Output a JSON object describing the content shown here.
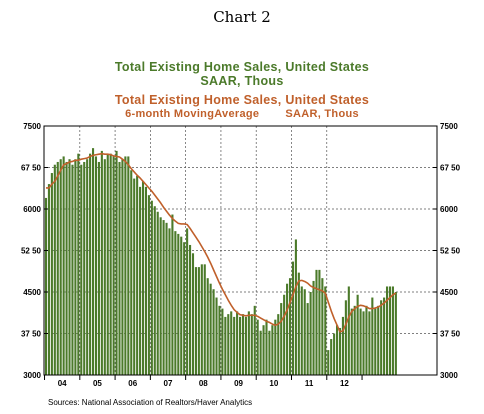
{
  "chart_data": {
    "type": "bar",
    "title": "Chart 2",
    "series": [
      {
        "name": "Total Existing Home Sales, United States",
        "name_line2": "SAAR, Thous",
        "color": "#4b7a2a",
        "kind": "bar",
        "values": [
          6200,
          6450,
          6650,
          6800,
          6850,
          6900,
          6950,
          6850,
          6900,
          6800,
          6900,
          7000,
          6800,
          6850,
          6900,
          7000,
          7100,
          6950,
          6850,
          7050,
          6900,
          7000,
          7000,
          6950,
          7050,
          6850,
          6900,
          6950,
          6950,
          6700,
          6550,
          6600,
          6400,
          6500,
          6400,
          6250,
          6150,
          6050,
          5950,
          5850,
          5800,
          5750,
          5650,
          5900,
          5600,
          5550,
          5500,
          5400,
          5650,
          5350,
          5200,
          4950,
          4950,
          5000,
          5000,
          4750,
          4650,
          4550,
          4400,
          4250,
          4200,
          4050,
          4100,
          4150,
          4050,
          4150,
          4050,
          4100,
          4050,
          4150,
          4100,
          4250,
          4000,
          3800,
          3900,
          4000,
          3800,
          3900,
          4000,
          4100,
          4300,
          4450,
          4650,
          4750,
          5050,
          5450,
          4850,
          4600,
          4550,
          4300,
          4500,
          4700,
          4900,
          4900,
          4750,
          4600,
          3450,
          3650,
          3750,
          3900,
          3850,
          4050,
          4350,
          4600,
          4200,
          4250,
          4450,
          4200,
          4150,
          4250,
          4150,
          4400,
          4200,
          4250,
          4350,
          4400,
          4600,
          4600,
          4600,
          4500
        ]
      },
      {
        "name": "Total Existing Home Sales, United States",
        "name_line2a": "6-month MovingAverage",
        "name_line2b": "SAAR, Thous",
        "color": "#c0602b",
        "kind": "line",
        "values": [
          6380,
          6380,
          6450,
          6500,
          6600,
          6700,
          6800,
          6820,
          6850,
          6860,
          6880,
          6880,
          6900,
          6910,
          6920,
          6950,
          6970,
          6980,
          6990,
          7000,
          6990,
          6990,
          6980,
          6960,
          6950,
          6940,
          6900,
          6860,
          6800,
          6730,
          6670,
          6610,
          6560,
          6500,
          6440,
          6380,
          6320,
          6250,
          6180,
          6110,
          6030,
          5960,
          5890,
          5830,
          5780,
          5740,
          5730,
          5730,
          5720,
          5650,
          5570,
          5490,
          5410,
          5320,
          5230,
          5130,
          5020,
          4900,
          4780,
          4660,
          4550,
          4450,
          4350,
          4260,
          4180,
          4130,
          4090,
          4080,
          4070,
          4080,
          4080,
          4080,
          4060,
          4030,
          4000,
          3970,
          3950,
          3920,
          3900,
          3920,
          3970,
          4060,
          4170,
          4310,
          4450,
          4600,
          4700,
          4710,
          4690,
          4660,
          4610,
          4580,
          4560,
          4540,
          4520,
          4480,
          4320,
          4160,
          4020,
          3900,
          3780,
          3800,
          3920,
          4050,
          4150,
          4200,
          4240,
          4260,
          4250,
          4230,
          4200,
          4200,
          4210,
          4230,
          4260,
          4300,
          4350,
          4400,
          4450,
          4480
        ]
      }
    ],
    "x_labels": [
      "04",
      "05",
      "06",
      "07",
      "08",
      "09",
      "10",
      "11",
      "12"
    ],
    "y_ticks": [
      3000,
      3750,
      4500,
      5250,
      6000,
      6750,
      7500
    ],
    "y_tick_labels": [
      "3000",
      "37 50",
      "4500",
      "52 50",
      "6000",
      "67 50",
      "7500"
    ],
    "ylim": [
      3000,
      7500
    ],
    "grid": true,
    "source": "Sources:  National Association of Realtors/Haver Analytics"
  }
}
